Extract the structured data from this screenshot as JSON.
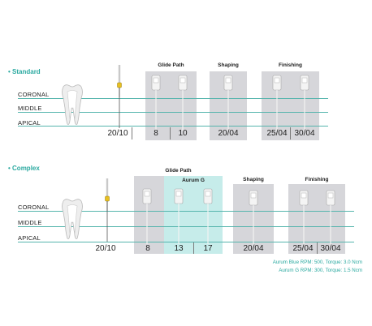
{
  "sections": [
    {
      "title": "• Standard",
      "labels": [
        "CORONAL",
        "MIDDLE",
        "APICAL"
      ],
      "sizes": [
        "20/10",
        "8",
        "10",
        "20/04",
        "25/04",
        "30/04"
      ],
      "groups": [
        "Glide Path",
        "Shaping",
        "Finishing"
      ]
    },
    {
      "title": "• Complex",
      "labels": [
        "CORONAL",
        "MIDDLE",
        "APICAL"
      ],
      "sizes": [
        "20/10",
        "8",
        "13",
        "17",
        "20/04",
        "25/04",
        "30/04"
      ],
      "groups": [
        "Glide Path",
        "Aurum G",
        "Shaping",
        "Finishing"
      ]
    }
  ],
  "notes": [
    "Aurum Blue RPM: 500, Torque: 3.0 Ncm",
    "Aurum G RPM: 300, Torque: 1.5 Ncm"
  ],
  "colors": {
    "accent": "#2aa9a0",
    "line": "#56b5ad",
    "panel": "#d6d6da",
    "panel_teal": "#c6ecea",
    "pilot": "#e8c020"
  },
  "icons": [
    "tooth-icon",
    "pilot-file-icon",
    "rotary-file-icon"
  ]
}
